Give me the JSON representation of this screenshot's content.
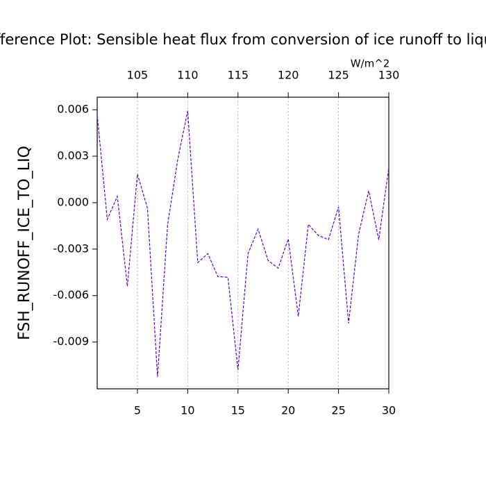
{
  "chart_data": {
    "type": "line",
    "title": "Difference Plot: Sensible heat flux from conversion of ice runoff to liquid",
    "ylabel": "FSH_RUNOFF_ICE_TO_LIQ",
    "units": "W/m^2",
    "x": [
      1,
      2,
      3,
      4,
      5,
      6,
      7,
      8,
      9,
      10,
      11,
      12,
      13,
      14,
      15,
      16,
      17,
      18,
      19,
      20,
      21,
      22,
      23,
      24,
      25,
      26,
      27,
      28,
      29,
      30
    ],
    "series": [
      {
        "color": "#5a00c8",
        "values": [
          0.00567,
          -0.00108,
          0.00041,
          -0.0054,
          0.00185,
          -0.00036,
          -0.01125,
          -0.00144,
          0.00275,
          0.00594,
          -0.00387,
          -0.00329,
          -0.00477,
          -0.00482,
          -0.0108,
          -0.00329,
          -0.00171,
          -0.00374,
          -0.00423,
          -0.00234,
          -0.00734,
          -0.0014,
          -0.00212,
          -0.00239,
          -0.00027,
          -0.00779,
          -0.00203,
          0.00077,
          -0.00239,
          0.00225
        ]
      }
    ],
    "xlim": [
      1,
      30
    ],
    "xticks": [
      5,
      10,
      15,
      20,
      25,
      30
    ],
    "xtick_color": "#ff0000",
    "x2lim": [
      101,
      130
    ],
    "x2ticks": [
      105,
      110,
      115,
      120,
      125,
      130
    ],
    "x2tick_color": "#0000ff",
    "ylim": [
      -0.01202,
      0.00681
    ],
    "yticks": [
      0.006,
      0.003,
      {
        "value": 0,
        "label": "0.000"
      },
      -0.003,
      -0.006,
      -0.009
    ],
    "grid": "x"
  }
}
